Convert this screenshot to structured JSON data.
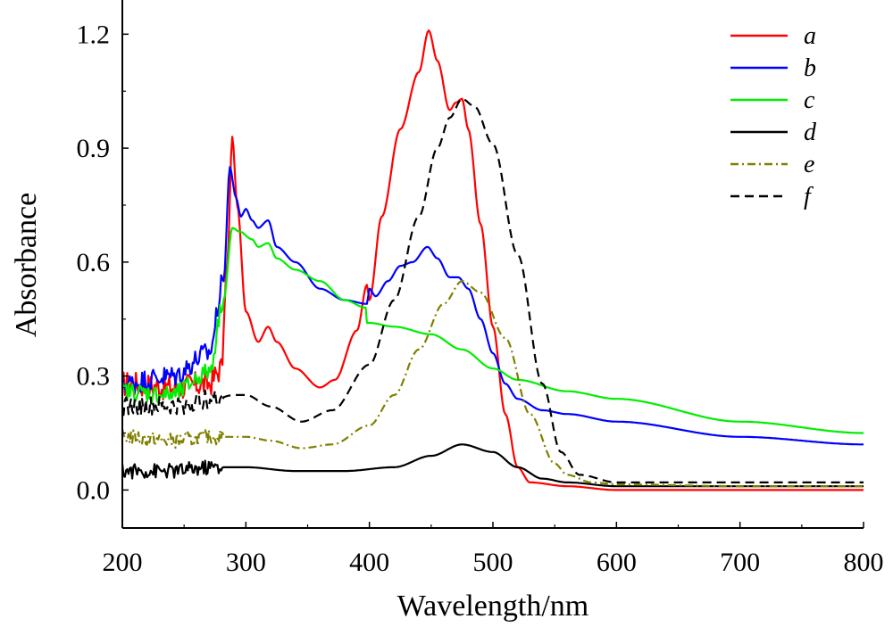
{
  "chart_data": {
    "type": "line",
    "xlabel": "Wavelength/nm",
    "ylabel": "Absorbance",
    "xlim": [
      200,
      800
    ],
    "ylim": [
      -0.1,
      1.29
    ],
    "xticks": [
      "200",
      "300",
      "400",
      "500",
      "600",
      "700",
      "800"
    ],
    "yticks": [
      "0.0",
      "0.3",
      "0.6",
      "0.9",
      "1.2"
    ],
    "legend_position": "top-right",
    "grid": false,
    "series": [
      {
        "name": "a",
        "color": "#ff0000",
        "dash": "solid",
        "noise": 0.035,
        "x": [
          200,
          240,
          270,
          280,
          285,
          289,
          293,
          300,
          310,
          318,
          325,
          340,
          360,
          372,
          390,
          398,
          400,
          410,
          425,
          440,
          448,
          455,
          465,
          470,
          475,
          480,
          490,
          500,
          510,
          520,
          530,
          560,
          600,
          700,
          800
        ],
        "y": [
          0.28,
          0.27,
          0.28,
          0.32,
          0.6,
          0.93,
          0.75,
          0.47,
          0.39,
          0.43,
          0.39,
          0.32,
          0.27,
          0.29,
          0.42,
          0.54,
          0.5,
          0.72,
          0.95,
          1.1,
          1.21,
          1.13,
          1.0,
          1.02,
          1.03,
          0.95,
          0.7,
          0.43,
          0.2,
          0.06,
          0.02,
          0.01,
          0.0,
          0.0,
          0.0
        ]
      },
      {
        "name": "b",
        "color": "#0000ff",
        "dash": "solid",
        "noise": 0.03,
        "x": [
          200,
          240,
          270,
          282,
          287,
          292,
          296,
          300,
          305,
          310,
          318,
          325,
          340,
          360,
          380,
          398,
          400,
          405,
          415,
          425,
          435,
          447,
          455,
          465,
          472,
          480,
          490,
          500,
          510,
          520,
          540,
          560,
          600,
          700,
          800
        ],
        "y": [
          0.28,
          0.3,
          0.36,
          0.55,
          0.85,
          0.77,
          0.72,
          0.74,
          0.71,
          0.69,
          0.71,
          0.64,
          0.6,
          0.53,
          0.5,
          0.49,
          0.53,
          0.51,
          0.55,
          0.59,
          0.6,
          0.64,
          0.61,
          0.56,
          0.56,
          0.53,
          0.45,
          0.36,
          0.28,
          0.24,
          0.21,
          0.2,
          0.18,
          0.14,
          0.12
        ]
      },
      {
        "name": "c",
        "color": "#00ee00",
        "dash": "solid",
        "noise": 0.025,
        "x": [
          200,
          240,
          270,
          282,
          289,
          295,
          305,
          310,
          318,
          325,
          340,
          360,
          380,
          397,
          398,
          400,
          420,
          450,
          475,
          500,
          520,
          560,
          600,
          700,
          800
        ],
        "y": [
          0.26,
          0.25,
          0.31,
          0.5,
          0.69,
          0.68,
          0.66,
          0.64,
          0.65,
          0.61,
          0.58,
          0.55,
          0.5,
          0.48,
          0.44,
          0.44,
          0.43,
          0.41,
          0.37,
          0.32,
          0.29,
          0.26,
          0.24,
          0.18,
          0.15
        ]
      },
      {
        "name": "d",
        "color": "#000000",
        "dash": "solid",
        "noise": 0.02,
        "x": [
          200,
          240,
          275,
          285,
          300,
          340,
          380,
          420,
          450,
          475,
          500,
          520,
          540,
          560,
          600,
          700,
          800
        ],
        "y": [
          0.05,
          0.05,
          0.06,
          0.06,
          0.06,
          0.05,
          0.05,
          0.06,
          0.09,
          0.12,
          0.1,
          0.06,
          0.03,
          0.02,
          0.01,
          0.01,
          0.01
        ]
      },
      {
        "name": "e",
        "color": "#808000",
        "dash": "dashdot",
        "noise": 0.02,
        "x": [
          200,
          240,
          275,
          290,
          300,
          320,
          345,
          370,
          400,
          420,
          440,
          460,
          475,
          490,
          510,
          530,
          550,
          560,
          580,
          600,
          700,
          800
        ],
        "y": [
          0.14,
          0.13,
          0.14,
          0.14,
          0.14,
          0.13,
          0.11,
          0.12,
          0.17,
          0.25,
          0.37,
          0.49,
          0.55,
          0.52,
          0.4,
          0.2,
          0.07,
          0.04,
          0.02,
          0.015,
          0.01,
          0.01
        ]
      },
      {
        "name": "f",
        "color": "#000000",
        "dash": "dashed",
        "noise": 0.025,
        "x": [
          200,
          240,
          275,
          290,
          300,
          320,
          345,
          370,
          400,
          420,
          440,
          455,
          465,
          475,
          485,
          500,
          520,
          540,
          555,
          570,
          600,
          700,
          800
        ],
        "y": [
          0.22,
          0.22,
          0.24,
          0.25,
          0.25,
          0.22,
          0.18,
          0.21,
          0.33,
          0.5,
          0.72,
          0.9,
          0.98,
          1.03,
          1.01,
          0.91,
          0.62,
          0.28,
          0.1,
          0.04,
          0.02,
          0.02,
          0.02
        ]
      }
    ]
  }
}
